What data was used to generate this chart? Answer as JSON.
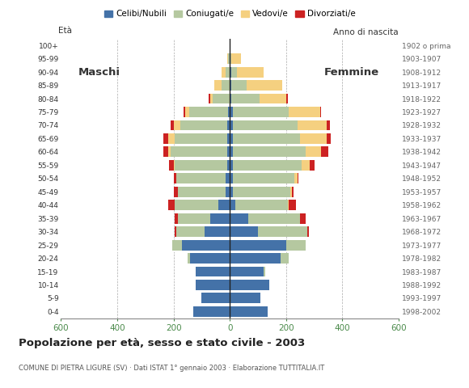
{
  "age_groups": [
    "0-4",
    "5-9",
    "10-14",
    "15-19",
    "20-24",
    "25-29",
    "30-34",
    "35-39",
    "40-44",
    "45-49",
    "50-54",
    "55-59",
    "60-64",
    "65-69",
    "70-74",
    "75-79",
    "80-84",
    "85-89",
    "90-94",
    "95-99",
    "100+"
  ],
  "birth_years": [
    "1998-2002",
    "1993-1997",
    "1988-1992",
    "1983-1987",
    "1978-1982",
    "1973-1977",
    "1968-1972",
    "1963-1967",
    "1958-1962",
    "1953-1957",
    "1948-1952",
    "1943-1947",
    "1938-1942",
    "1933-1937",
    "1928-1932",
    "1923-1927",
    "1918-1922",
    "1913-1917",
    "1908-1912",
    "1903-1907",
    "1902 o prima"
  ],
  "male": {
    "celibi": [
      130,
      100,
      120,
      120,
      140,
      170,
      90,
      70,
      40,
      15,
      15,
      10,
      10,
      10,
      10,
      5,
      0,
      0,
      0,
      0,
      0
    ],
    "coniugati": [
      0,
      0,
      0,
      0,
      10,
      35,
      100,
      115,
      155,
      170,
      175,
      185,
      200,
      185,
      165,
      140,
      60,
      30,
      15,
      5,
      0
    ],
    "vedovi": [
      0,
      0,
      0,
      0,
      0,
      0,
      0,
      0,
      0,
      0,
      0,
      5,
      10,
      25,
      25,
      15,
      10,
      25,
      15,
      5,
      0
    ],
    "divorziati": [
      0,
      0,
      0,
      0,
      0,
      0,
      5,
      10,
      25,
      15,
      10,
      15,
      15,
      15,
      10,
      5,
      5,
      0,
      0,
      0,
      0
    ]
  },
  "female": {
    "nubili": [
      135,
      110,
      140,
      120,
      180,
      200,
      100,
      65,
      20,
      10,
      10,
      10,
      10,
      10,
      10,
      10,
      5,
      5,
      5,
      0,
      0
    ],
    "coniugate": [
      0,
      0,
      0,
      5,
      30,
      70,
      175,
      185,
      185,
      205,
      220,
      245,
      260,
      240,
      230,
      200,
      100,
      55,
      20,
      5,
      0
    ],
    "vedove": [
      0,
      0,
      0,
      0,
      0,
      0,
      0,
      0,
      5,
      5,
      10,
      30,
      55,
      95,
      105,
      110,
      95,
      125,
      95,
      35,
      0
    ],
    "divorziate": [
      0,
      0,
      0,
      0,
      0,
      0,
      5,
      20,
      25,
      5,
      5,
      15,
      25,
      15,
      10,
      5,
      5,
      0,
      0,
      0,
      0
    ]
  },
  "colors": {
    "celibi": "#4472a8",
    "coniugati": "#b5c8a0",
    "vedovi": "#f5d080",
    "divorziati": "#cc2222"
  },
  "title": "Popolazione per età, sesso e stato civile - 2003",
  "subtitle": "COMUNE DI PIETRA LIGURE (SV) · Dati ISTAT 1° gennaio 2003 · Elaborazione TUTTITALIA.IT",
  "xlim": 600,
  "legend_labels": [
    "Celibi/Nubili",
    "Coniugati/e",
    "Vedovi/e",
    "Divorziati/e"
  ],
  "label_eta": "Età",
  "label_anno": "Anno di nascita",
  "label_maschi": "Maschi",
  "label_femmine": "Femmine",
  "bg_color": "#ffffff",
  "grid_color": "#aaaaaa",
  "tick_color": "#4a8a4a"
}
